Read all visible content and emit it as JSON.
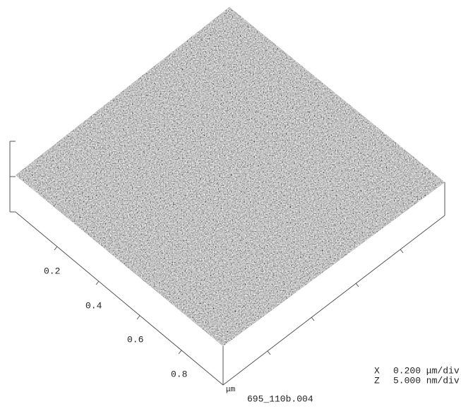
{
  "x_axis": {
    "tick_labels": [
      "0.2",
      "0.4",
      "0.6",
      "0.8"
    ],
    "unit": "μm"
  },
  "file_name": "695_110b.004",
  "scale": {
    "x_label": "X",
    "x_value": "0.200 μm/div",
    "z_label": "Z",
    "z_value": "5.000 nm/div"
  }
}
